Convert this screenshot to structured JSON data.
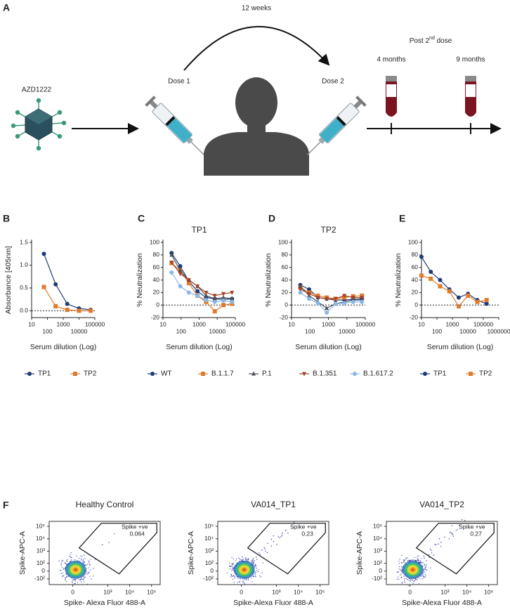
{
  "panel_a": {
    "label": "A",
    "drug": "AZD1222",
    "interval": "12 weeks",
    "dose1": "Dose 1",
    "dose2": "Dose 2",
    "post_prefix": "Post 2",
    "post_sup": "nd",
    "post_suffix": " dose",
    "timepoints": [
      "4 months",
      "9 months"
    ]
  },
  "chart_data": [
    {
      "type": "line",
      "panel": "B",
      "xlabel": "Serum dilution (Log)",
      "ylabel": "Absorbance [405nm]",
      "xscale": "log",
      "zero_line": true,
      "legend": true,
      "x": [
        60,
        330,
        1800,
        10000,
        55000
      ],
      "xlim": [
        10,
        100000
      ],
      "xticks": [
        10,
        100,
        1000,
        10000,
        100000
      ],
      "ylim": [
        -0.15,
        1.5
      ],
      "yticks": [
        {
          "value": 0,
          "label": "0.0"
        },
        0.5,
        {
          "value": 1,
          "label": "1.0"
        },
        1.5
      ],
      "series": [
        {
          "name": "TP1",
          "color": "#1f3a78",
          "marker": "circle",
          "values": [
            1.25,
            0.58,
            0.15,
            0.05,
            0.02
          ]
        },
        {
          "name": "TP2",
          "color": "#e07a2c",
          "marker": "square",
          "values": [
            0.52,
            0.1,
            0.02,
            0.0,
            0.0
          ]
        }
      ]
    },
    {
      "type": "line",
      "panel": "C",
      "title": "TP1",
      "xlabel": "Serum dilution (Log)",
      "ylabel": "% Neutralization",
      "xscale": "log",
      "zero_line": true,
      "legend": true,
      "x": [
        30,
        90,
        270,
        810,
        2430,
        7290,
        21870,
        65610
      ],
      "xlim": [
        10,
        100000
      ],
      "xticks": [
        10,
        100,
        1000,
        10000,
        100000
      ],
      "ylim": [
        -20,
        100
      ],
      "yticks": [
        -20,
        0,
        20,
        40,
        60,
        80,
        100
      ],
      "series": [
        {
          "name": "WT",
          "color": "#1f3a78",
          "marker": "circle",
          "values": [
            83,
            62,
            38,
            22,
            12,
            10,
            9,
            10
          ]
        },
        {
          "name": "B.1.1.7",
          "color": "#e07a2c",
          "marker": "square",
          "values": [
            67,
            55,
            35,
            15,
            5,
            -10,
            0,
            2
          ]
        },
        {
          "name": "P.1",
          "color": "#4a5058",
          "marker": "triangle",
          "values": [
            80,
            55,
            40,
            30,
            15,
            10,
            12,
            10
          ]
        },
        {
          "name": "B.1.351",
          "color": "#a0452a",
          "marker": "triangle-down",
          "values": [
            68,
            50,
            40,
            30,
            20,
            15,
            18,
            20
          ]
        },
        {
          "name": "B.1.617.2",
          "color": "#8ab8e6",
          "marker": "circle",
          "values": [
            52,
            30,
            20,
            15,
            8,
            5,
            7,
            5
          ]
        }
      ]
    },
    {
      "type": "line",
      "panel": "D",
      "title": "TP2",
      "xlabel": "Serum dilution (Log)",
      "ylabel": "% Neutralization",
      "xscale": "log",
      "zero_line": true,
      "legend": false,
      "x": [
        30,
        90,
        270,
        810,
        2430,
        7290,
        21870,
        65610
      ],
      "xlim": [
        10,
        100000
      ],
      "xticks": [
        10,
        100,
        1000,
        10000,
        100000
      ],
      "ylim": [
        -20,
        100
      ],
      "yticks": [
        -20,
        0,
        20,
        40,
        60,
        80,
        100
      ],
      "series": [
        {
          "name": "WT",
          "color": "#1f3a78",
          "marker": "circle",
          "values": [
            32,
            25,
            12,
            10,
            8,
            8,
            9,
            10
          ]
        },
        {
          "name": "B.1.1.7",
          "color": "#e07a2c",
          "marker": "square",
          "values": [
            28,
            20,
            15,
            12,
            10,
            12,
            14,
            15
          ]
        },
        {
          "name": "P.1",
          "color": "#4a5058",
          "marker": "triangle",
          "values": [
            30,
            15,
            5,
            -5,
            2,
            5,
            8,
            8
          ]
        },
        {
          "name": "B.1.351",
          "color": "#a0452a",
          "marker": "triangle-down",
          "values": [
            25,
            18,
            12,
            10,
            10,
            15,
            12,
            12
          ]
        },
        {
          "name": "B.1.617.2",
          "color": "#8ab8e6",
          "marker": "circle",
          "values": [
            20,
            10,
            3,
            -12,
            2,
            3,
            5,
            5
          ]
        }
      ]
    },
    {
      "type": "line",
      "panel": "E",
      "xlabel": "Serum dilution (Log)",
      "ylabel": "% Neutralization",
      "xscale": "log",
      "zero_line": true,
      "legend": true,
      "x": [
        10,
        40,
        160,
        640,
        2560,
        10240,
        40960,
        163840
      ],
      "xlim": [
        10,
        1000000
      ],
      "xticks": [
        10,
        100,
        1000,
        10000,
        100000,
        1000000
      ],
      "ylim": [
        -20,
        100
      ],
      "yticks": [
        -20,
        0,
        20,
        40,
        60,
        80,
        100
      ],
      "series": [
        {
          "name": "TP1",
          "color": "#1f3a78",
          "marker": "circle",
          "values": [
            77,
            53,
            40,
            25,
            12,
            18,
            8,
            2
          ]
        },
        {
          "name": "TP2",
          "color": "#e07a2c",
          "marker": "square",
          "values": [
            47,
            42,
            30,
            22,
            -2,
            15,
            5,
            8
          ]
        }
      ]
    }
  ],
  "flow": {
    "label": "F",
    "xlim": [
      -300,
      250000
    ],
    "ylim": [
      -300,
      250000
    ],
    "xticks": [
      0,
      {
        "value": 1000,
        "label": "10³"
      },
      {
        "value": 10000,
        "label": "10⁴"
      },
      {
        "value": 100000,
        "label": "10⁵"
      }
    ],
    "yticks": [
      {
        "value": -100,
        "label": "-10²"
      },
      0,
      {
        "value": 100,
        "label": "10²"
      },
      {
        "value": 1000,
        "label": "10³"
      },
      {
        "value": 10000,
        "label": "10⁴"
      },
      {
        "value": 100000,
        "label": "10⁵"
      }
    ],
    "plots": [
      {
        "title": "Healthy Control",
        "xlabel": "Spike- Alexa Fluor 488-A",
        "ylabel": "Spike-APC-A",
        "gate_label": "Spike +ve",
        "gate_value": 0.064
      },
      {
        "title": "VA014_TP1",
        "xlabel": "Spike-Alexa Fluor 488-A",
        "ylabel": "Spike-APC-A",
        "gate_label": "Spike +ve",
        "gate_value": 0.23
      },
      {
        "title": "VA014_TP2",
        "xlabel": "Spike-Alexa Fluor 488-A",
        "ylabel": "Spike-APC-A",
        "gate_label": "Spike +ve",
        "gate_value": 0.27
      }
    ]
  }
}
